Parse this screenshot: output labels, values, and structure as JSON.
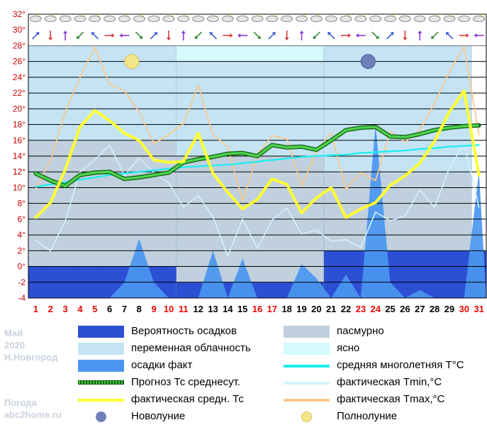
{
  "chart_data": {
    "type": "line",
    "meta": {
      "month": "Май",
      "year": "2020",
      "city": "Н.Новгород",
      "site_label": "Погода",
      "site": "abc2home.ru"
    },
    "x": [
      1,
      2,
      3,
      4,
      5,
      6,
      7,
      8,
      9,
      10,
      11,
      12,
      13,
      14,
      15,
      16,
      17,
      18,
      19,
      20,
      21,
      22,
      23,
      24,
      25,
      26,
      27,
      28,
      29,
      30,
      31
    ],
    "x_labels": [
      "1",
      "2",
      "3",
      "4",
      "5",
      "6",
      "7",
      "8",
      "9",
      "10",
      "11",
      "12",
      "13",
      "14",
      "15",
      "16",
      "17",
      "18",
      "19",
      "20",
      "21",
      "22",
      "23",
      "24",
      "25",
      "26",
      "27",
      "28",
      "29",
      "30",
      "31"
    ],
    "weekend_days": [
      1,
      2,
      3,
      4,
      5,
      9,
      10,
      11,
      16,
      17,
      23,
      24,
      30,
      31
    ],
    "y_ticks": [
      "-4",
      "-2",
      "0°",
      "2°",
      "4°",
      "6°",
      "8°",
      "10°",
      "12°",
      "14°",
      "16°",
      "18°",
      "20°",
      "22°",
      "24°",
      "26°",
      "28°",
      "30°",
      "32°"
    ],
    "ylim": [
      -4,
      32
    ],
    "colors": {
      "precip_prob": "#2d4fd4",
      "variable": "#c4e4f4",
      "overcast": "#c0d0de",
      "clear": "#d4fafc",
      "precip_fact": "#4a96f0",
      "forecast": "#1d9a1d",
      "avg_norm": "#19f0f0",
      "tmin": "#d2f2fa",
      "tmax": "#f6c990",
      "tavg": "#ffff33",
      "weekday": "#000000",
      "weekend": "#ee0000",
      "grid": "#000000"
    },
    "precip_probability": [
      0,
      0,
      0,
      0,
      0,
      0,
      0,
      0,
      0,
      0,
      -2,
      -2,
      -2,
      -2,
      -2,
      -2,
      -2,
      -2,
      -2,
      -2,
      2,
      2,
      2,
      2,
      2,
      2,
      2,
      2,
      2,
      2,
      2
    ],
    "precip_fact": [
      -4,
      -4,
      -4,
      -4,
      -4,
      -4,
      -2,
      3.5,
      -2,
      -4,
      -4,
      -4,
      2,
      -4,
      1,
      -4,
      -4,
      -4,
      0.3,
      -1.5,
      -4,
      -1,
      -4,
      18,
      -2,
      -4,
      -3,
      -4,
      -4,
      -4,
      12
    ],
    "sky_bands": [
      {
        "type": "variable",
        "from": 1,
        "to": 11,
        "top": 28
      },
      {
        "type": "clear",
        "from": 11,
        "to": 21,
        "top": 28
      },
      {
        "type": "variable",
        "from": 11,
        "to": 21,
        "top": 26
      },
      {
        "type": "variable",
        "from": 21,
        "to": 31,
        "top": 28
      },
      {
        "type": "overcast",
        "from": 1,
        "to": 11,
        "top": 16
      },
      {
        "type": "overcast",
        "from": 11,
        "to": 21,
        "top": 14
      },
      {
        "type": "overcast",
        "from": 21,
        "to": 31,
        "top": 12
      }
    ],
    "moon_phases": [
      {
        "type": "full",
        "day": 7,
        "value": 26
      },
      {
        "type": "new",
        "day": 23,
        "value": 26
      }
    ],
    "weather_icon_rows": 2,
    "series": [
      {
        "name": "Прогноз Тс среднесут.",
        "key": "forecast",
        "values": [
          11.8,
          10.9,
          10.2,
          11.6,
          11.9,
          12.0,
          11.1,
          11.3,
          11.6,
          11.9,
          13.2,
          13.6,
          13.9,
          14.3,
          14.4,
          14.0,
          15.4,
          15.1,
          15.2,
          14.8,
          16.0,
          17.3,
          17.6,
          17.7,
          16.5,
          16.4,
          16.8,
          17.3,
          17.6,
          17.8,
          17.9
        ]
      },
      {
        "name": "средняя многолетняя Т°С",
        "key": "avg_norm",
        "values": [
          10.1,
          10.4,
          10.7,
          11.0,
          11.3,
          11.6,
          11.8,
          12.0,
          12.2,
          12.4,
          12.6,
          12.7,
          12.8,
          12.9,
          13.1,
          13.3,
          13.5,
          13.7,
          13.9,
          14.0,
          14.1,
          14.2,
          14.4,
          14.5,
          14.6,
          14.7,
          14.9,
          15.0,
          15.2,
          15.3,
          15.4
        ]
      },
      {
        "name": "фактическая Tmin,°C",
        "key": "tmin",
        "values": [
          3.3,
          2.0,
          5.8,
          12.0,
          13.5,
          15.4,
          11.5,
          13.8,
          11.9,
          10.6,
          7.5,
          9.0,
          6.3,
          1.3,
          6.0,
          2.3,
          5.9,
          7.4,
          4.1,
          4.6,
          3.2,
          3.4,
          2.4,
          6.9,
          5.8,
          6.4,
          9.7,
          7.5,
          12.5,
          15.6,
          7.5
        ]
      },
      {
        "name": "фактическая Tmax,°C",
        "key": "tmax",
        "values": [
          9.8,
          13.5,
          19.6,
          24.0,
          27.8,
          23.1,
          22.3,
          19.6,
          15.6,
          16.7,
          18.1,
          23.0,
          16.7,
          15.2,
          8.3,
          14.2,
          16.6,
          16.2,
          10.2,
          14.6,
          17.0,
          9.8,
          11.9,
          10.9,
          17.1,
          15.8,
          17.3,
          20.7,
          24.7,
          27.9,
          16.7
        ]
      },
      {
        "name": "фактическая средн. Тс",
        "key": "tavg",
        "values": [
          6.2,
          8.1,
          12.3,
          17.7,
          19.8,
          18.5,
          16.9,
          16.0,
          13.5,
          13.2,
          13.3,
          16.9,
          11.8,
          9.4,
          7.3,
          8.5,
          11.1,
          10.4,
          6.8,
          8.7,
          10.0,
          6.2,
          7.3,
          8.1,
          10.3,
          11.5,
          13.1,
          15.9,
          19.6,
          22.3,
          11.6
        ]
      }
    ],
    "legend": [
      {
        "label": "Вероятность осадков",
        "color_key": "precip_prob",
        "kind": "box",
        "column": "left"
      },
      {
        "label": "переменная облачность",
        "color_key": "variable",
        "kind": "box",
        "column": "left"
      },
      {
        "label": "осадки факт",
        "color_key": "precip_fact",
        "kind": "box",
        "column": "left"
      },
      {
        "label": "Прогноз Тс среднесут.",
        "color_key": "forecast",
        "kind": "dotted-line",
        "column": "left"
      },
      {
        "label": "фактическая средн. Тс",
        "color_key": "tavg",
        "kind": "line",
        "column": "left"
      },
      {
        "label": "Новолуние",
        "color_key": "new",
        "kind": "new-moon",
        "column": "left"
      },
      {
        "label": "пасмурно",
        "color_key": "overcast",
        "kind": "box",
        "column": "right"
      },
      {
        "label": "ясно",
        "color_key": "clear",
        "kind": "box",
        "column": "right"
      },
      {
        "label": "средняя многолетняя Т°С",
        "color_key": "avg_norm",
        "kind": "line",
        "column": "right"
      },
      {
        "label": "фактическая Tmin,°C",
        "color_key": "tmin",
        "kind": "line",
        "column": "right"
      },
      {
        "label": "фактическая Tmax,°C",
        "color_key": "tmax",
        "kind": "line",
        "column": "right"
      },
      {
        "label": "Полнолуние",
        "color_key": "full",
        "kind": "full-moon",
        "column": "right"
      }
    ]
  }
}
